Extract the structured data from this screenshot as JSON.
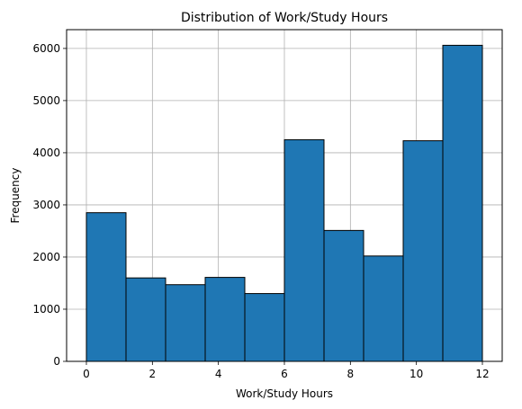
{
  "chart_data": {
    "type": "bar",
    "title": "Distribution of Work/Study Hours",
    "xlabel": "Work/Study Hours",
    "ylabel": "Frequency",
    "bin_edges": [
      0,
      1.2,
      2.4,
      3.6,
      4.8,
      6.0,
      7.2,
      8.4,
      9.6,
      10.8,
      12.0
    ],
    "values": [
      2850,
      1600,
      1470,
      1610,
      1300,
      4250,
      2510,
      2020,
      4230,
      6060
    ],
    "xlim": [
      -0.6,
      12.6
    ],
    "ylim": [
      0,
      6360
    ],
    "xticks": [
      0,
      2,
      4,
      6,
      8,
      10,
      12
    ],
    "yticks": [
      0,
      1000,
      2000,
      3000,
      4000,
      5000,
      6000
    ],
    "grid": true,
    "bar_color": "#1f77b4",
    "edge_color": "#000000"
  }
}
